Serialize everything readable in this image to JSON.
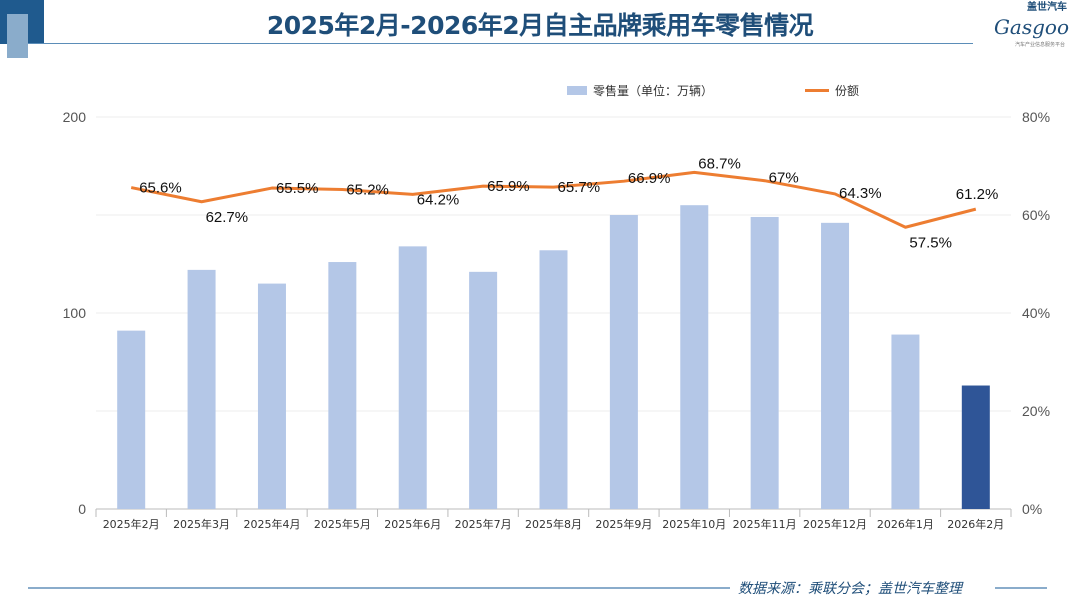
{
  "title": "2025年2月-2026年2月自主品牌乘用车零售情况",
  "logo": {
    "cn": "盖世汽车",
    "en": "Gasgoo",
    "sub": "汽车产业信息服务平台"
  },
  "footer": "数据来源：乘联分会；盖世汽车整理",
  "colors": {
    "bar": "#b4c7e7",
    "bar_highlight": "#2f5597",
    "line": "#ed7d31",
    "title": "#1f4e79"
  },
  "chart_data": {
    "type": "bar+line",
    "categories": [
      "2025年2月",
      "2025年3月",
      "2025年4月",
      "2025年5月",
      "2025年6月",
      "2025年7月",
      "2025年8月",
      "2025年9月",
      "2025年10月",
      "2025年11月",
      "2025年12月",
      "2026年1月",
      "2026年2月"
    ],
    "series": [
      {
        "name": "零售量（单位：万辆）",
        "type": "bar",
        "axis": "left",
        "values": [
          91,
          122,
          115,
          126,
          134,
          121,
          132,
          150,
          155,
          149,
          146,
          89,
          63
        ]
      },
      {
        "name": "份额",
        "type": "line",
        "axis": "right",
        "values": [
          65.6,
          62.7,
          65.5,
          65.2,
          64.2,
          65.9,
          65.7,
          66.9,
          68.7,
          67,
          64.3,
          57.5,
          61.2
        ],
        "labels": [
          "65.6%",
          "62.7%",
          "65.5%",
          "65.2%",
          "64.2%",
          "65.9%",
          "65.7%",
          "66.9%",
          "68.7%",
          "67%",
          "64.3%",
          "57.5%",
          "61.2%"
        ]
      }
    ],
    "y_left": {
      "range": [
        0,
        200
      ],
      "ticks": [
        "0",
        "100",
        "200"
      ]
    },
    "y_right": {
      "range": [
        0,
        80
      ],
      "ticks": [
        "0%",
        "20%",
        "40%",
        "60%",
        "80%"
      ]
    },
    "grid": true,
    "legend": "top-right"
  }
}
